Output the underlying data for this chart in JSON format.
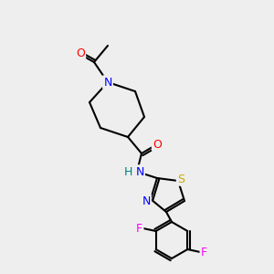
{
  "bg_color": "#eeeeee",
  "bond_color": "#000000",
  "atom_colors": {
    "O": "#ff0000",
    "N": "#0000ff",
    "S": "#ccaa00",
    "F": "#ff00ff",
    "H": "#008080",
    "C": "#000000"
  },
  "figsize": [
    3.0,
    3.0
  ],
  "dpi": 100
}
